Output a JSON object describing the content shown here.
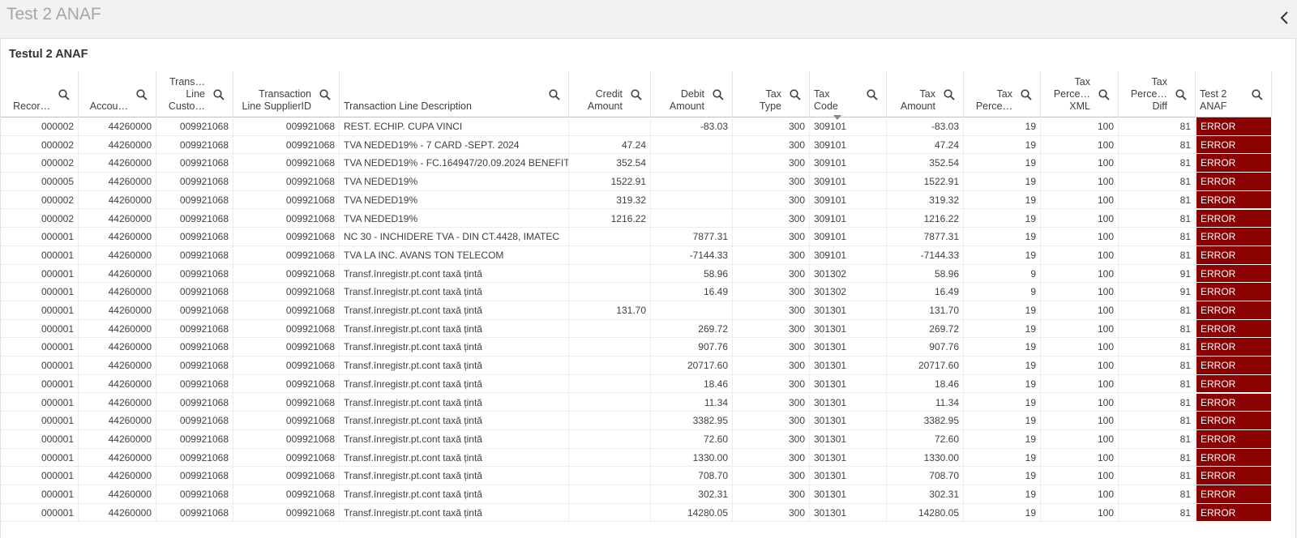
{
  "header": {
    "title": "Test 2 ANAF"
  },
  "panel": {
    "title": "Testul 2 ANAF"
  },
  "table": {
    "columns": [
      [
        "Recor…"
      ],
      [
        "Accou…"
      ],
      [
        "Trans…",
        "Line",
        "Custo…"
      ],
      [
        "Transaction",
        "Line SupplierID"
      ],
      [
        "Transaction Line Description"
      ],
      [
        "Credit",
        "Amount"
      ],
      [
        "Debit",
        "Amount"
      ],
      [
        "Tax",
        "Type"
      ],
      [
        "Tax",
        "Code"
      ],
      [
        "Tax",
        "Amount"
      ],
      [
        "Tax",
        "Perce…"
      ],
      [
        "Tax",
        "Perce…",
        "XML"
      ],
      [
        "Tax",
        "Perce…",
        "Diff"
      ],
      [
        "Test 2",
        "ANAF"
      ]
    ],
    "rows": [
      [
        "000002",
        "44260000",
        "009921068",
        "009921068",
        "REST. ECHIP. CUPA VINCI",
        null,
        "-83.03",
        "300",
        "309101",
        "-83.03",
        "19",
        "100",
        "81",
        "ERROR"
      ],
      [
        "000002",
        "44260000",
        "009921068",
        "009921068",
        "TVA NEDED19% - 7 CARD -SEPT. 2024",
        "47.24",
        null,
        "300",
        "309101",
        "47.24",
        "19",
        "100",
        "81",
        "ERROR"
      ],
      [
        "000002",
        "44260000",
        "009921068",
        "009921068",
        "TVA NEDED19% - FC.164947/20.09.2024 BENEFIT",
        "352.54",
        null,
        "300",
        "309101",
        "352.54",
        "19",
        "100",
        "81",
        "ERROR"
      ],
      [
        "000005",
        "44260000",
        "009921068",
        "009921068",
        "TVA NEDED19%",
        "1522.91",
        null,
        "300",
        "309101",
        "1522.91",
        "19",
        "100",
        "81",
        "ERROR"
      ],
      [
        "000002",
        "44260000",
        "009921068",
        "009921068",
        "TVA NEDED19%",
        "319.32",
        null,
        "300",
        "309101",
        "319.32",
        "19",
        "100",
        "81",
        "ERROR"
      ],
      [
        "000002",
        "44260000",
        "009921068",
        "009921068",
        "TVA NEDED19%",
        "1216.22",
        null,
        "300",
        "309101",
        "1216.22",
        "19",
        "100",
        "81",
        "ERROR"
      ],
      [
        "000001",
        "44260000",
        "009921068",
        "009921068",
        "NC 30 - INCHIDERE TVA - DIN CT.4428, IMATEC",
        null,
        "7877.31",
        "300",
        "309101",
        "7877.31",
        "19",
        "100",
        "81",
        "ERROR"
      ],
      [
        "000001",
        "44260000",
        "009921068",
        "009921068",
        "TVA LA INC. AVANS TON TELECOM",
        null,
        "-7144.33",
        "300",
        "309101",
        "-7144.33",
        "19",
        "100",
        "81",
        "ERROR"
      ],
      [
        "000001",
        "44260000",
        "009921068",
        "009921068",
        "Transf.înregistr.pt.cont taxă țintă",
        null,
        "58.96",
        "300",
        "301302",
        "58.96",
        "9",
        "100",
        "91",
        "ERROR"
      ],
      [
        "000001",
        "44260000",
        "009921068",
        "009921068",
        "Transf.înregistr.pt.cont taxă țintă",
        null,
        "16.49",
        "300",
        "301302",
        "16.49",
        "9",
        "100",
        "91",
        "ERROR"
      ],
      [
        "000001",
        "44260000",
        "009921068",
        "009921068",
        "Transf.înregistr.pt.cont taxă țintă",
        "131.70",
        null,
        "300",
        "301301",
        "131.70",
        "19",
        "100",
        "81",
        "ERROR"
      ],
      [
        "000001",
        "44260000",
        "009921068",
        "009921068",
        "Transf.înregistr.pt.cont taxă țintă",
        null,
        "269.72",
        "300",
        "301301",
        "269.72",
        "19",
        "100",
        "81",
        "ERROR"
      ],
      [
        "000001",
        "44260000",
        "009921068",
        "009921068",
        "Transf.înregistr.pt.cont taxă țintă",
        null,
        "907.76",
        "300",
        "301301",
        "907.76",
        "19",
        "100",
        "81",
        "ERROR"
      ],
      [
        "000001",
        "44260000",
        "009921068",
        "009921068",
        "Transf.înregistr.pt.cont taxă țintă",
        null,
        "20717.60",
        "300",
        "301301",
        "20717.60",
        "19",
        "100",
        "81",
        "ERROR"
      ],
      [
        "000001",
        "44260000",
        "009921068",
        "009921068",
        "Transf.înregistr.pt.cont taxă țintă",
        null,
        "18.46",
        "300",
        "301301",
        "18.46",
        "19",
        "100",
        "81",
        "ERROR"
      ],
      [
        "000001",
        "44260000",
        "009921068",
        "009921068",
        "Transf.înregistr.pt.cont taxă țintă",
        null,
        "11.34",
        "300",
        "301301",
        "11.34",
        "19",
        "100",
        "81",
        "ERROR"
      ],
      [
        "000001",
        "44260000",
        "009921068",
        "009921068",
        "Transf.înregistr.pt.cont taxă țintă",
        null,
        "3382.95",
        "300",
        "301301",
        "3382.95",
        "19",
        "100",
        "81",
        "ERROR"
      ],
      [
        "000001",
        "44260000",
        "009921068",
        "009921068",
        "Transf.înregistr.pt.cont taxă țintă",
        null,
        "72.60",
        "300",
        "301301",
        "72.60",
        "19",
        "100",
        "81",
        "ERROR"
      ],
      [
        "000001",
        "44260000",
        "009921068",
        "009921068",
        "Transf.înregistr.pt.cont taxă țintă",
        null,
        "1330.00",
        "300",
        "301301",
        "1330.00",
        "19",
        "100",
        "81",
        "ERROR"
      ],
      [
        "000001",
        "44260000",
        "009921068",
        "009921068",
        "Transf.înregistr.pt.cont taxă țintă",
        null,
        "708.70",
        "300",
        "301301",
        "708.70",
        "19",
        "100",
        "81",
        "ERROR"
      ],
      [
        "000001",
        "44260000",
        "009921068",
        "009921068",
        "Transf.înregistr.pt.cont taxă țintă",
        null,
        "302.31",
        "300",
        "301301",
        "302.31",
        "19",
        "100",
        "81",
        "ERROR"
      ],
      [
        "000001",
        "44260000",
        "009921068",
        "009921068",
        "Transf.înregistr.pt.cont taxă țintă",
        null,
        "14280.05",
        "300",
        "301301",
        "14280.05",
        "19",
        "100",
        "81",
        "ERROR"
      ]
    ]
  }
}
